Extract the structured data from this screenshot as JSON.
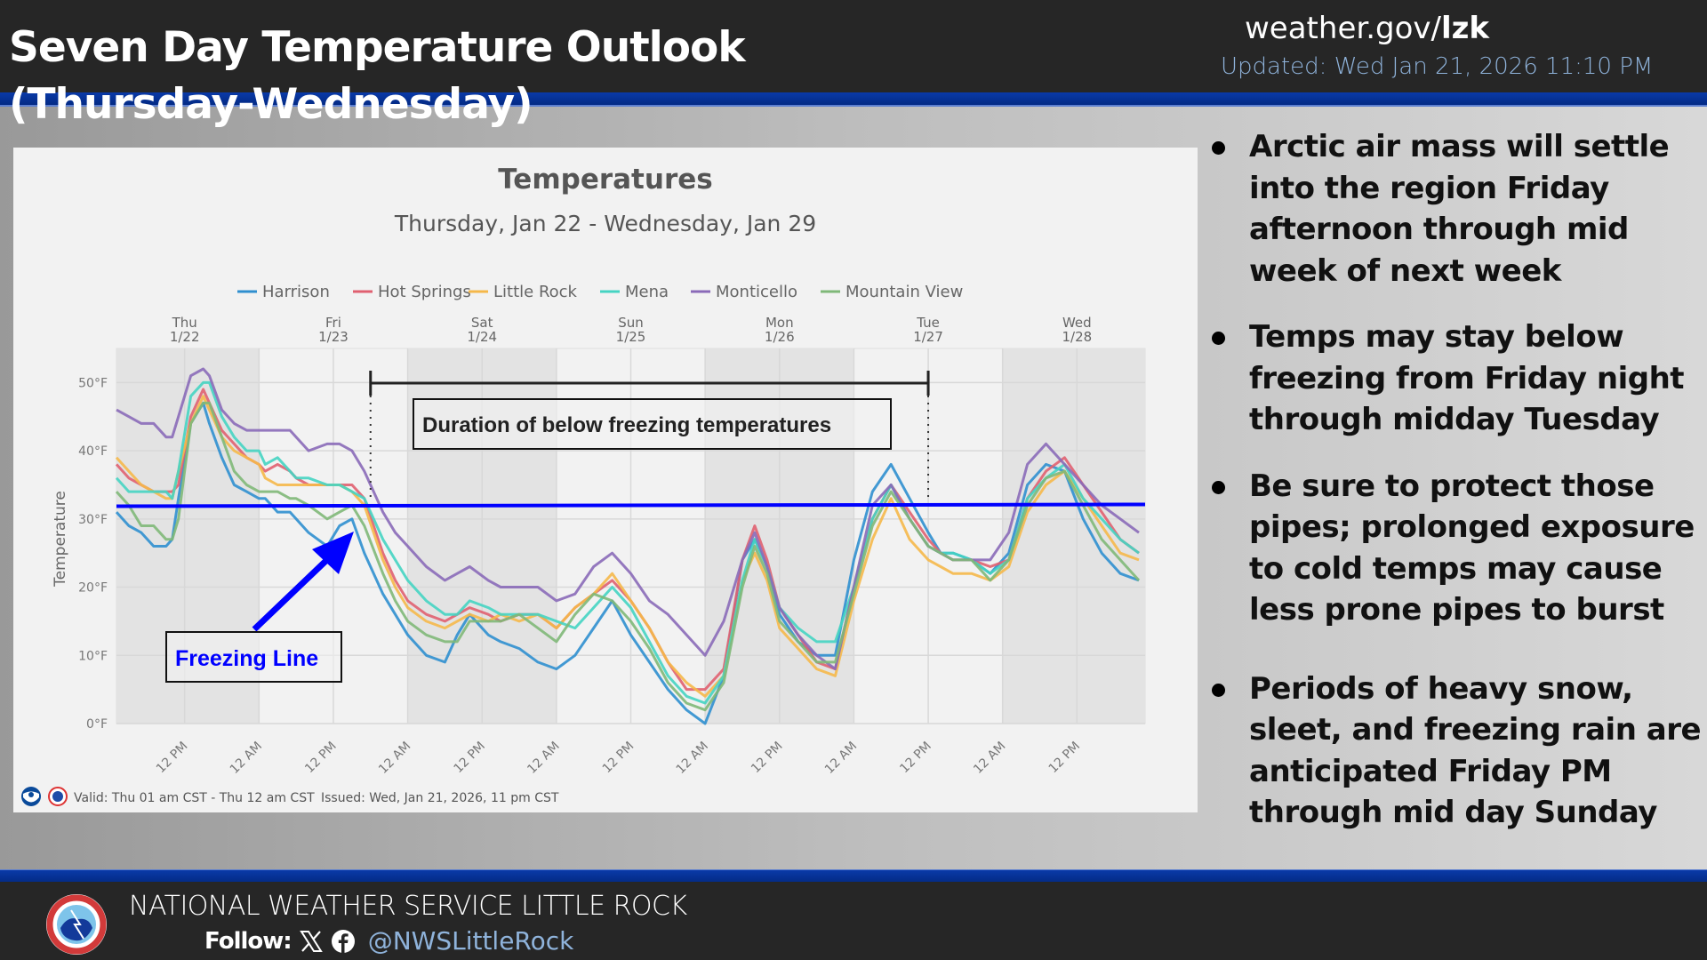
{
  "header": {
    "title_line1": "Seven Day Temperature Outlook",
    "title_line2": "(Thursday-Wednesday)",
    "site_prefix": "weather.gov/",
    "site_office": "lzk",
    "updated": "Updated: Wed Jan 21, 2026 11:10 PM"
  },
  "bullets": [
    "Arctic air mass will settle into the region Friday afternoon through mid week of next week",
    "Temps may stay below freezing from Friday night through midday Tuesday",
    "Be sure to protect those pipes; prolonged exposure to cold temps may cause less prone pipes to burst",
    "Periods of heavy snow, sleet, and freezing rain are anticipated Friday PM through mid day Sunday"
  ],
  "footer": {
    "org_name": "NATIONAL WEATHER SERVICE LITTLE ROCK",
    "follow_label": "Follow:",
    "social_icons": [
      "x-icon",
      "facebook-icon"
    ],
    "handle": "@NWSLittleRock"
  },
  "chart_footer": {
    "valid": "Valid: Thu 01 am CST - Thu 12 am CST",
    "issued": "Issued: Wed, Jan 21, 2026, 11 pm CST"
  },
  "annotations": {
    "duration_label": "Duration of below freezing temperatures",
    "freezing_label": "Freezing Line",
    "freezing_value_f": 32,
    "duration_start_hour": 42,
    "duration_end_hour": 132,
    "arrow_color": "#0000ff"
  },
  "chart_data": {
    "type": "line",
    "title": "Temperatures",
    "subtitle": "Thursday, Jan 22 - Wednesday, Jan 29",
    "ylabel": "Temperature",
    "xlabel": "",
    "ylim": [
      0,
      55
    ],
    "xlim_hours": [
      1,
      167
    ],
    "x_unit": "hours since Thu 1/22 12 AM CST",
    "y_ticks": [
      0,
      10,
      20,
      30,
      40,
      50
    ],
    "y_tick_labels": [
      "0°F",
      "10°F",
      "20°F",
      "30°F",
      "40°F",
      "50°F"
    ],
    "x_ticks_hours": [
      12,
      24,
      36,
      48,
      60,
      72,
      84,
      96,
      108,
      120,
      132,
      144,
      156
    ],
    "x_tick_labels": [
      "12 PM",
      "12 AM",
      "12 PM",
      "12 AM",
      "12 PM",
      "12 AM",
      "12 PM",
      "12 AM",
      "12 PM",
      "12 AM",
      "12 PM",
      "12 AM",
      "12 PM"
    ],
    "day_labels": [
      {
        "hour": 12,
        "day": "Thu",
        "date": "1/22"
      },
      {
        "hour": 36,
        "day": "Fri",
        "date": "1/23"
      },
      {
        "hour": 60,
        "day": "Sat",
        "date": "1/24"
      },
      {
        "hour": 84,
        "day": "Sun",
        "date": "1/25"
      },
      {
        "hour": 108,
        "day": "Mon",
        "date": "1/26"
      },
      {
        "hour": 132,
        "day": "Tue",
        "date": "1/27"
      },
      {
        "hour": 156,
        "day": "Wed",
        "date": "1/28"
      }
    ],
    "night_shading_hours": [
      [
        1,
        24
      ],
      [
        48,
        72
      ],
      [
        96,
        120
      ],
      [
        144,
        167
      ]
    ],
    "grid": true,
    "legend_position": "top",
    "series": [
      {
        "name": "Harrison",
        "color": "#2f8fcf",
        "x": [
          1,
          3,
          5,
          7,
          9,
          10,
          11,
          13,
          15,
          16,
          18,
          20,
          22,
          24,
          25,
          27,
          29,
          30,
          32,
          35,
          37,
          39,
          41,
          44,
          46,
          48,
          51,
          54,
          56,
          58,
          61,
          63,
          66,
          69,
          72,
          75,
          78,
          81,
          84,
          87,
          90,
          93,
          96,
          99,
          102,
          104,
          106,
          108,
          111,
          114,
          117,
          120,
          123,
          126,
          129,
          132,
          134,
          136,
          139,
          142,
          145,
          148,
          151,
          154,
          157,
          160,
          163,
          166
        ],
        "y": [
          31,
          29,
          28,
          26,
          26,
          27,
          33,
          44,
          47,
          44,
          39,
          35,
          34,
          33,
          33,
          31,
          31,
          30,
          28,
          26,
          29,
          30,
          25,
          19,
          16,
          13,
          10,
          9,
          13,
          16,
          13,
          12,
          11,
          9,
          8,
          10,
          14,
          18,
          13,
          9,
          5,
          2,
          0,
          7,
          24,
          27,
          23,
          16,
          12,
          10,
          10,
          24,
          34,
          38,
          33,
          28,
          25,
          25,
          24,
          22,
          25,
          35,
          38,
          37,
          30,
          25,
          22,
          21
        ]
      },
      {
        "name": "Hot Springs",
        "color": "#e06070",
        "x": [
          1,
          3,
          5,
          7,
          9,
          10,
          11,
          13,
          15,
          16,
          18,
          20,
          22,
          24,
          25,
          27,
          29,
          30,
          32,
          35,
          37,
          39,
          41,
          44,
          46,
          48,
          51,
          54,
          56,
          58,
          61,
          63,
          66,
          69,
          72,
          75,
          78,
          81,
          84,
          87,
          90,
          93,
          96,
          99,
          102,
          104,
          106,
          108,
          111,
          114,
          117,
          120,
          123,
          126,
          129,
          132,
          134,
          136,
          139,
          142,
          145,
          148,
          151,
          154,
          157,
          160,
          163,
          166
        ],
        "y": [
          38,
          36,
          35,
          34,
          34,
          34,
          35,
          45,
          49,
          47,
          43,
          41,
          39,
          38,
          37,
          38,
          37,
          36,
          35,
          35,
          35,
          35,
          33,
          25,
          21,
          18,
          16,
          15,
          16,
          17,
          16,
          15,
          16,
          16,
          14,
          17,
          19,
          21,
          18,
          14,
          9,
          5,
          5,
          8,
          24,
          29,
          24,
          17,
          13,
          9,
          8,
          20,
          30,
          35,
          31,
          27,
          25,
          24,
          24,
          23,
          24,
          33,
          37,
          39,
          35,
          31,
          27,
          25
        ]
      },
      {
        "name": "Little Rock",
        "color": "#f5b84a",
        "x": [
          1,
          3,
          5,
          7,
          9,
          10,
          11,
          13,
          15,
          16,
          18,
          20,
          22,
          24,
          25,
          27,
          29,
          30,
          32,
          35,
          37,
          39,
          41,
          44,
          46,
          48,
          51,
          54,
          56,
          58,
          61,
          63,
          66,
          69,
          72,
          75,
          78,
          81,
          84,
          87,
          90,
          93,
          96,
          99,
          102,
          104,
          106,
          108,
          111,
          114,
          117,
          120,
          123,
          126,
          129,
          132,
          134,
          136,
          139,
          142,
          145,
          148,
          151,
          154,
          157,
          160,
          163,
          166
        ],
        "y": [
          39,
          37,
          35,
          34,
          33,
          33,
          37,
          44,
          48,
          46,
          42,
          40,
          39,
          38,
          36,
          35,
          35,
          35,
          35,
          35,
          35,
          34,
          32,
          24,
          20,
          17,
          15,
          14,
          15,
          16,
          15,
          16,
          15,
          16,
          14,
          17,
          19,
          22,
          18,
          14,
          9,
          6,
          4,
          7,
          21,
          25,
          21,
          14,
          11,
          8,
          7,
          18,
          27,
          33,
          27,
          24,
          23,
          22,
          22,
          21,
          23,
          31,
          35,
          37,
          33,
          29,
          25,
          24
        ]
      },
      {
        "name": "Mena",
        "color": "#45d4c2",
        "x": [
          1,
          3,
          5,
          7,
          9,
          10,
          11,
          13,
          15,
          16,
          18,
          20,
          22,
          24,
          25,
          27,
          29,
          30,
          32,
          35,
          37,
          39,
          41,
          44,
          46,
          48,
          51,
          54,
          56,
          58,
          61,
          63,
          66,
          69,
          72,
          75,
          78,
          81,
          84,
          87,
          90,
          93,
          96,
          99,
          102,
          104,
          106,
          108,
          111,
          114,
          117,
          120,
          123,
          126,
          129,
          132,
          134,
          136,
          139,
          142,
          145,
          148,
          151,
          154,
          157,
          160,
          163,
          166
        ],
        "y": [
          36,
          34,
          34,
          34,
          34,
          33,
          37,
          48,
          50,
          50,
          45,
          42,
          40,
          40,
          38,
          39,
          37,
          36,
          36,
          35,
          35,
          34,
          33,
          27,
          24,
          21,
          18,
          16,
          16,
          18,
          17,
          16,
          16,
          16,
          15,
          14,
          17,
          20,
          17,
          12,
          7,
          4,
          3,
          7,
          21,
          27,
          23,
          17,
          14,
          12,
          12,
          20,
          30,
          35,
          30,
          26,
          25,
          25,
          24,
          22,
          24,
          33,
          36,
          38,
          33,
          30,
          27,
          25
        ]
      },
      {
        "name": "Monticello",
        "color": "#8a6ab8",
        "x": [
          1,
          3,
          5,
          7,
          9,
          10,
          11,
          13,
          15,
          16,
          18,
          20,
          22,
          24,
          25,
          27,
          29,
          30,
          32,
          35,
          37,
          39,
          41,
          44,
          46,
          48,
          51,
          54,
          56,
          58,
          61,
          63,
          66,
          69,
          72,
          75,
          78,
          81,
          84,
          87,
          90,
          93,
          96,
          99,
          102,
          104,
          106,
          108,
          111,
          114,
          117,
          120,
          123,
          126,
          129,
          132,
          134,
          136,
          139,
          142,
          145,
          148,
          151,
          154,
          157,
          160,
          163,
          166
        ],
        "y": [
          46,
          45,
          44,
          44,
          42,
          42,
          45,
          51,
          52,
          51,
          46,
          44,
          43,
          43,
          43,
          43,
          43,
          42,
          40,
          41,
          41,
          40,
          37,
          31,
          28,
          26,
          23,
          21,
          22,
          23,
          21,
          20,
          20,
          20,
          18,
          19,
          23,
          25,
          22,
          18,
          16,
          13,
          10,
          15,
          24,
          28,
          23,
          17,
          13,
          10,
          8,
          20,
          32,
          35,
          30,
          26,
          25,
          24,
          24,
          24,
          28,
          38,
          41,
          38,
          35,
          32,
          30,
          28
        ]
      },
      {
        "name": "Mountain View",
        "color": "#7fb878",
        "x": [
          1,
          3,
          5,
          7,
          9,
          10,
          11,
          13,
          15,
          16,
          18,
          20,
          22,
          24,
          25,
          27,
          29,
          30,
          32,
          35,
          37,
          39,
          41,
          44,
          46,
          48,
          51,
          54,
          56,
          58,
          61,
          63,
          66,
          69,
          72,
          75,
          78,
          81,
          84,
          87,
          90,
          93,
          96,
          99,
          102,
          104,
          106,
          108,
          111,
          114,
          117,
          120,
          123,
          126,
          129,
          132,
          134,
          136,
          139,
          142,
          145,
          148,
          151,
          154,
          157,
          160,
          163,
          166
        ],
        "y": [
          34,
          32,
          29,
          29,
          27,
          27,
          30,
          44,
          47,
          47,
          42,
          37,
          35,
          34,
          34,
          34,
          33,
          33,
          32,
          30,
          31,
          32,
          29,
          22,
          18,
          15,
          13,
          12,
          12,
          15,
          15,
          15,
          16,
          14,
          12,
          16,
          19,
          18,
          15,
          11,
          6,
          3,
          2,
          6,
          20,
          26,
          22,
          15,
          12,
          9,
          9,
          19,
          29,
          34,
          30,
          26,
          25,
          24,
          24,
          21,
          24,
          32,
          36,
          37,
          32,
          27,
          24,
          21
        ]
      }
    ]
  }
}
